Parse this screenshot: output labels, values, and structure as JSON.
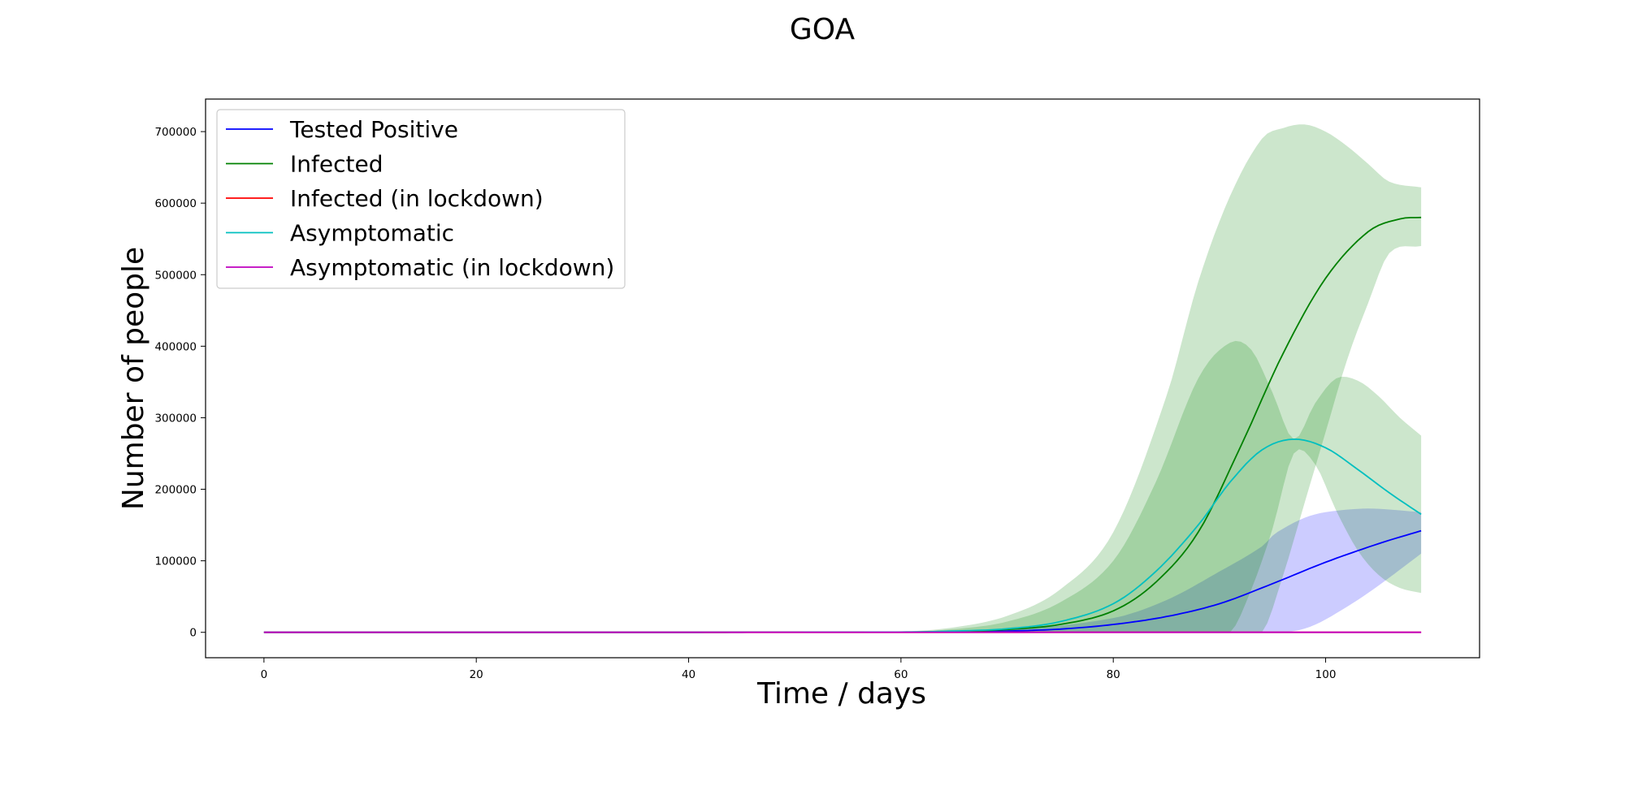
{
  "chart_data": {
    "type": "line",
    "title": "GOA",
    "xlabel": "Time / days",
    "ylabel": "Number of people",
    "xlim": [
      -5.5,
      114.5
    ],
    "ylim": [
      -35500,
      745500
    ],
    "xticks": [
      0,
      20,
      40,
      60,
      80,
      100
    ],
    "yticks": [
      0,
      100000,
      200000,
      300000,
      400000,
      500000,
      600000,
      700000
    ],
    "grid": false,
    "legend_position": "upper left",
    "series": [
      {
        "name": "Tested Positive",
        "color": "#0000ff",
        "x": [
          0,
          60,
          65,
          70,
          75,
          80,
          85,
          90,
          95,
          100,
          105,
          109
        ],
        "y": [
          0,
          200,
          700,
          1800,
          4500,
          11000,
          22000,
          40000,
          68000,
          98000,
          124000,
          142000
        ]
      },
      {
        "name": "Infected",
        "color": "#008000",
        "x": [
          0,
          60,
          65,
          70,
          75,
          80,
          84,
          88,
          92,
          96,
          100,
          104,
          107,
          109
        ],
        "y": [
          0,
          300,
          1300,
          4000,
          11000,
          30000,
          70000,
          140000,
          260000,
          390000,
          495000,
          560000,
          578000,
          580000
        ]
      },
      {
        "name": "Infected (in lockdown)",
        "color": "#ff0000",
        "x": [
          0,
          109
        ],
        "y": [
          0,
          0
        ]
      },
      {
        "name": "Asymptomatic",
        "color": "#00bfbf",
        "x": [
          0,
          60,
          65,
          70,
          75,
          80,
          84,
          88,
          91,
          94,
          97,
          100,
          103,
          106,
          109
        ],
        "y": [
          0,
          400,
          1800,
          5000,
          15000,
          40000,
          85000,
          150000,
          210000,
          255000,
          270000,
          258000,
          228000,
          195000,
          165000
        ]
      },
      {
        "name": "Asymptomatic (in lockdown)",
        "color": "#bf00bf",
        "x": [
          0,
          109
        ],
        "y": [
          0,
          0
        ]
      }
    ],
    "bands": [
      {
        "color": "#0000ff",
        "opacity": 0.2,
        "x": [
          0,
          60,
          70,
          80,
          85,
          90,
          94,
          95,
          96,
          98,
          100,
          104,
          109
        ],
        "lower": [
          0,
          0,
          0,
          0,
          0,
          0,
          0,
          0,
          0,
          5000,
          18000,
          55000,
          110000
        ],
        "upper": [
          0,
          400,
          3000,
          20000,
          45000,
          85000,
          120000,
          135000,
          145000,
          160000,
          168000,
          173000,
          168000
        ]
      },
      {
        "color": "#008000",
        "opacity": 0.2,
        "x": [
          0,
          60,
          65,
          70,
          75,
          80,
          85,
          88,
          91,
          94,
          96,
          98,
          100,
          102,
          104,
          106,
          109
        ],
        "lower": [
          0,
          0,
          0,
          0,
          0,
          0,
          0,
          0,
          0,
          0,
          80000,
          180000,
          280000,
          380000,
          460000,
          530000,
          540000
        ],
        "upper": [
          0,
          1500,
          7000,
          23000,
          60000,
          140000,
          330000,
          490000,
          610000,
          690000,
          705000,
          710000,
          700000,
          680000,
          655000,
          630000,
          622000
        ]
      },
      {
        "color": "#008000",
        "opacity": 0.2,
        "x": [
          0,
          60,
          65,
          70,
          75,
          80,
          84,
          88,
          91,
          93,
          95,
          97,
          99,
          101,
          103,
          105,
          107,
          109
        ],
        "lower": [
          0,
          0,
          0,
          0,
          0,
          0,
          0,
          0,
          0,
          60000,
          145000,
          250000,
          235000,
          170000,
          115000,
          80000,
          62000,
          55000
        ],
        "upper": [
          0,
          1000,
          4500,
          15000,
          42000,
          100000,
          210000,
          355000,
          405000,
          395000,
          335000,
          270000,
          320000,
          355000,
          352000,
          330000,
          300000,
          275000
        ]
      }
    ]
  }
}
